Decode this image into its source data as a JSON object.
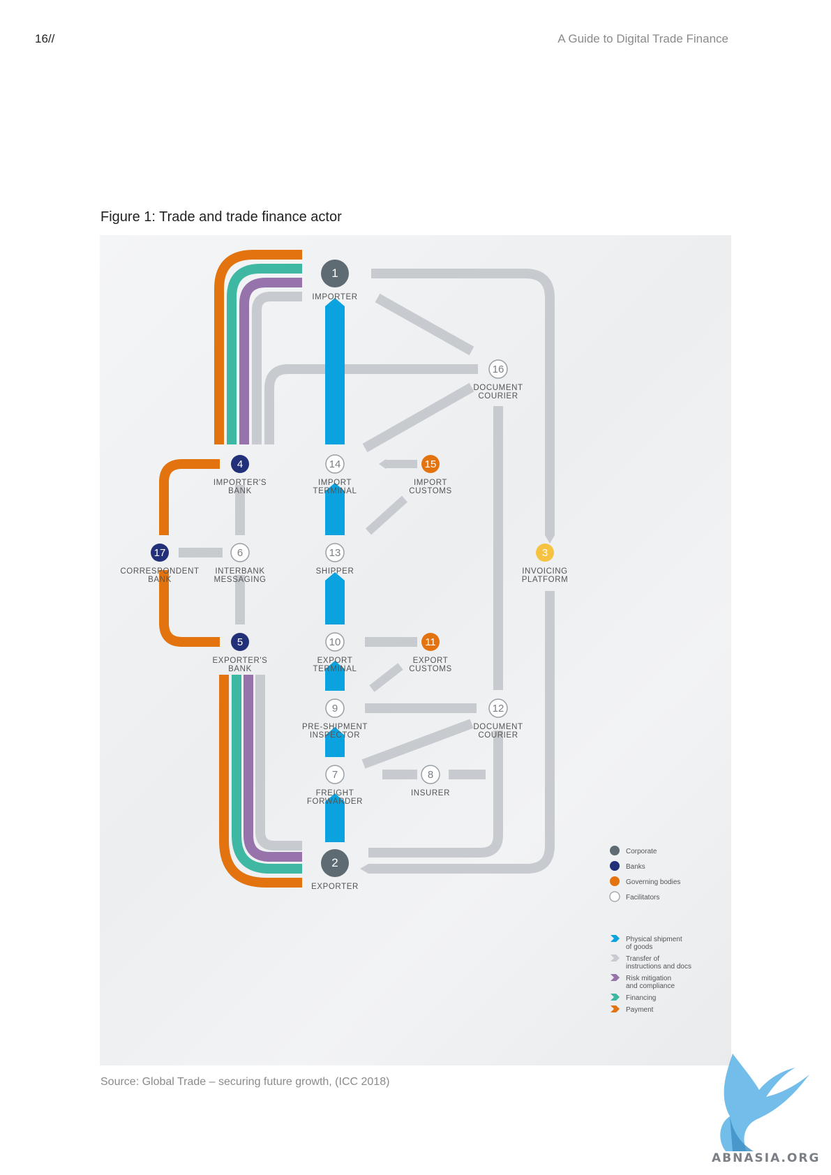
{
  "header": {
    "page_number": "16//",
    "running_title": "A Guide to Digital Trade Finance"
  },
  "figure": {
    "title": "Figure 1: Trade and trade finance actor",
    "source": "Source: Global Trade – securing future growth, (ICC 2018)"
  },
  "colors": {
    "corporate": "#5f6b73",
    "bank": "#22307a",
    "governing": "#e2730e",
    "facilitator_fill": "#ffffff",
    "facilitator_stroke": "#9aa0a6",
    "invoicing": "#f6c242",
    "physical": "#0aa3e0",
    "transfer": "#c7cbd0",
    "risk": "#9673ab",
    "financing": "#3fb8a3",
    "payment": "#e2730e"
  },
  "nodes": [
    {
      "id": "1",
      "number": "1",
      "label_lines": [
        "IMPORTER"
      ],
      "type": "corporate"
    },
    {
      "id": "2",
      "number": "2",
      "label_lines": [
        "EXPORTER"
      ],
      "type": "corporate"
    },
    {
      "id": "3",
      "number": "3",
      "label_lines": [
        "INVOICING",
        "PLATFORM"
      ],
      "type": "invoicing"
    },
    {
      "id": "4",
      "number": "4",
      "label_lines": [
        "IMPORTER'S",
        "BANK"
      ],
      "type": "bank"
    },
    {
      "id": "5",
      "number": "5",
      "label_lines": [
        "EXPORTER'S",
        "BANK"
      ],
      "type": "bank"
    },
    {
      "id": "6",
      "number": "6",
      "label_lines": [
        "INTERBANK",
        "MESSAGING"
      ],
      "type": "facilitator"
    },
    {
      "id": "7",
      "number": "7",
      "label_lines": [
        "FREIGHT",
        "FORWARDER"
      ],
      "type": "facilitator"
    },
    {
      "id": "8",
      "number": "8",
      "label_lines": [
        "INSURER"
      ],
      "type": "facilitator"
    },
    {
      "id": "9",
      "number": "9",
      "label_lines": [
        "PRE-SHIPMENT",
        "INSPECTOR"
      ],
      "type": "facilitator"
    },
    {
      "id": "10",
      "number": "10",
      "label_lines": [
        "EXPORT",
        "TERMINAL"
      ],
      "type": "facilitator"
    },
    {
      "id": "11",
      "number": "11",
      "label_lines": [
        "EXPORT",
        "CUSTOMS"
      ],
      "type": "governing"
    },
    {
      "id": "12",
      "number": "12",
      "label_lines": [
        "DOCUMENT",
        "COURIER"
      ],
      "type": "facilitator"
    },
    {
      "id": "13",
      "number": "13",
      "label_lines": [
        "SHIPPER"
      ],
      "type": "facilitator"
    },
    {
      "id": "14",
      "number": "14",
      "label_lines": [
        "IMPORT",
        "TERMINAL"
      ],
      "type": "facilitator"
    },
    {
      "id": "15",
      "number": "15",
      "label_lines": [
        "IMPORT",
        "CUSTOMS"
      ],
      "type": "governing"
    },
    {
      "id": "16",
      "number": "16",
      "label_lines": [
        "DOCUMENT",
        "COURIER"
      ],
      "type": "facilitator"
    },
    {
      "id": "17",
      "number": "17",
      "label_lines": [
        "CORRESPONDENT",
        "BANK"
      ],
      "type": "bank"
    }
  ],
  "legend": {
    "actors": [
      {
        "type": "corporate",
        "label_lines": [
          "Corporate"
        ]
      },
      {
        "type": "bank",
        "label_lines": [
          "Banks"
        ]
      },
      {
        "type": "governing",
        "label_lines": [
          "Governing bodies"
        ]
      },
      {
        "type": "facilitator",
        "label_lines": [
          "Facilitators"
        ]
      }
    ],
    "flows": [
      {
        "type": "physical",
        "label_lines": [
          "Physical shipment",
          "of goods"
        ]
      },
      {
        "type": "transfer",
        "label_lines": [
          "Transfer of",
          "instructions and docs"
        ]
      },
      {
        "type": "risk",
        "label_lines": [
          "Risk mitigation",
          "and compliance"
        ]
      },
      {
        "type": "financing",
        "label_lines": [
          "Financing"
        ]
      },
      {
        "type": "payment",
        "label_lines": [
          "Payment"
        ]
      }
    ]
  },
  "watermark": {
    "text": "ABNASIA.ORG"
  }
}
